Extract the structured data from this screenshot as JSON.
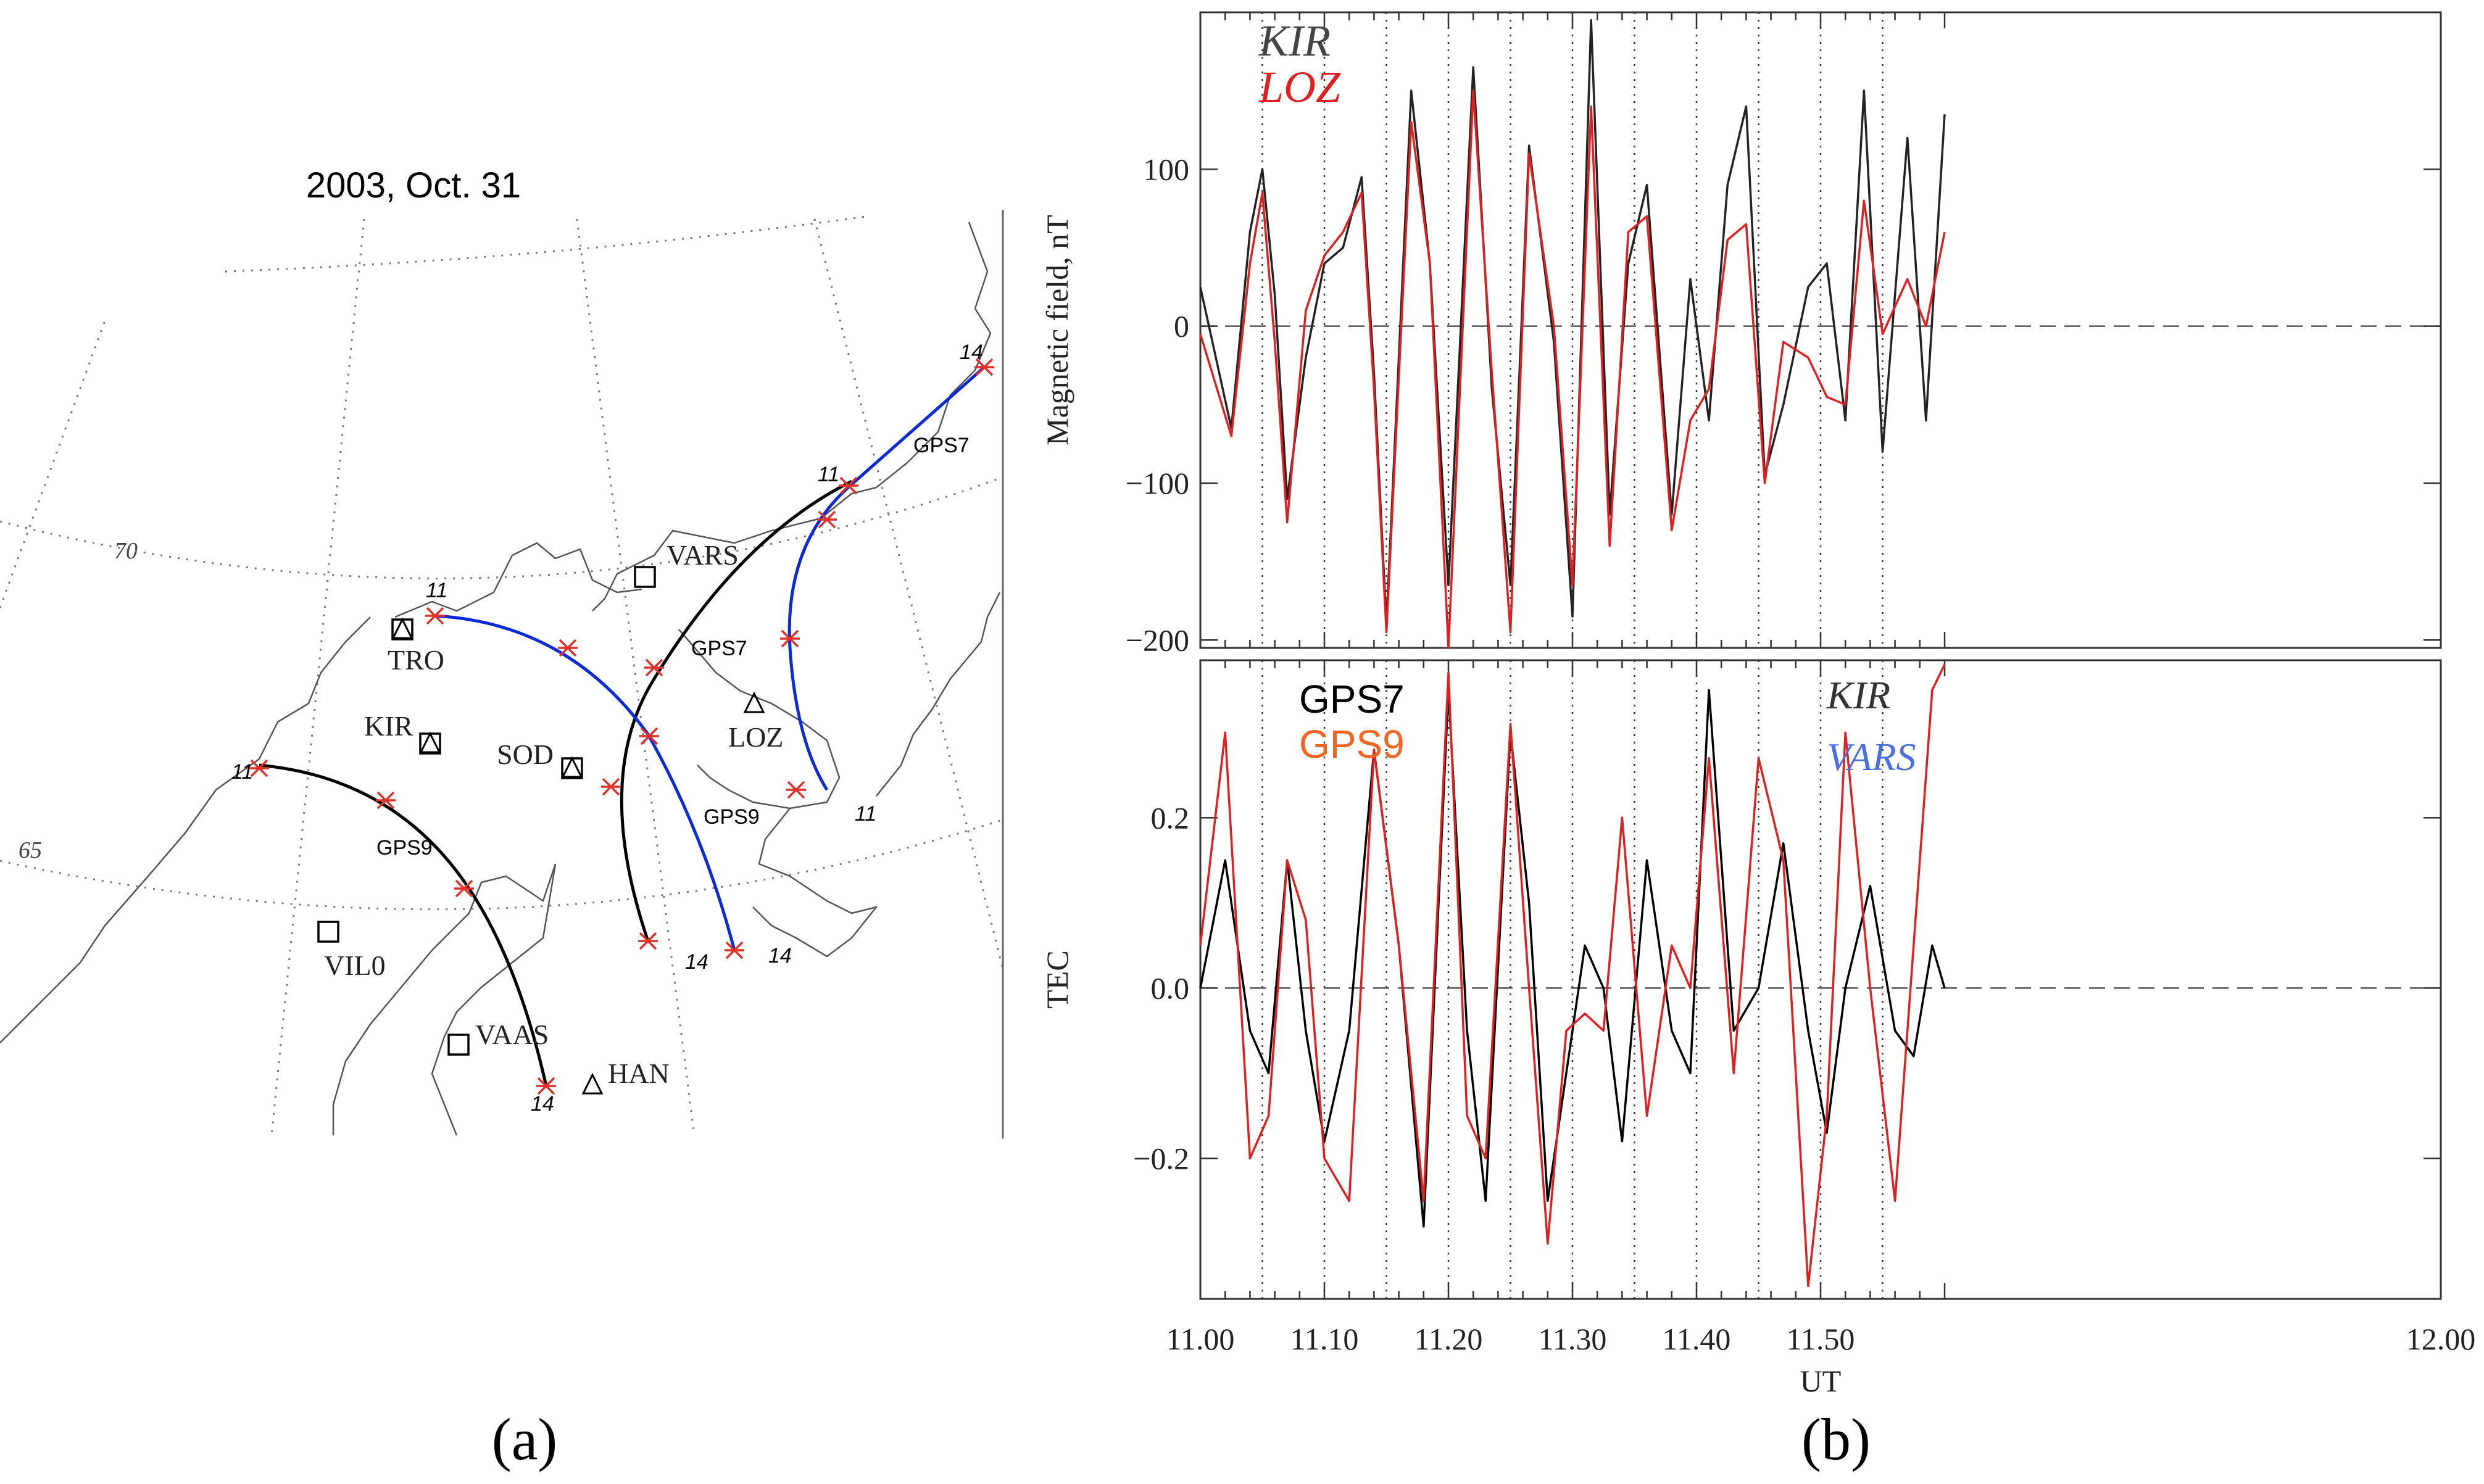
{
  "map": {
    "title": "2003, Oct. 31",
    "panel_label": "(a)",
    "lat_labels": [
      "70",
      "65"
    ],
    "stations": [
      {
        "code": "VARS",
        "marker": "square"
      },
      {
        "code": "TRO",
        "marker": "square-triangle"
      },
      {
        "code": "KIR",
        "marker": "square-triangle"
      },
      {
        "code": "SOD",
        "marker": "square-triangle"
      },
      {
        "code": "LOZ",
        "marker": "triangle"
      },
      {
        "code": "VIL0",
        "marker": "square"
      },
      {
        "code": "VAAS",
        "marker": "square"
      },
      {
        "code": "HAN",
        "marker": "triangle"
      }
    ],
    "tracks": [
      {
        "label": "GPS9",
        "color": "#000000",
        "start_label": "11",
        "end_label": "14"
      },
      {
        "label": "GPS7",
        "color": "#000000",
        "start_label": "11",
        "end_label": "14"
      },
      {
        "label": "GPS9",
        "color": "#0a2bd6",
        "start_label": "11",
        "end_label": "14"
      },
      {
        "label": "GPS7",
        "color": "#0a2bd6",
        "start_label": "11",
        "end_label": "14"
      }
    ],
    "colors": {
      "coast": "#666666",
      "grid": "#777777",
      "marker": "#e0302a"
    }
  },
  "chart_data": [
    {
      "type": "line",
      "panel": "(b) top",
      "ylabel": "Magnetic field, nT",
      "xlim": [
        11.0,
        12.0
      ],
      "ylim": [
        -205,
        200
      ],
      "yticks": [
        -200,
        -100,
        0,
        100
      ],
      "ytick_labels": [
        "−200",
        "−100",
        "0",
        "100"
      ],
      "zero_line": "dashed",
      "vgrid": "dotted every 0.05",
      "legend": [
        {
          "name": "KIR",
          "color": "#444444"
        },
        {
          "name": "LOZ",
          "color": "#e02020"
        }
      ],
      "x": [
        11.0,
        11.025,
        11.04,
        11.05,
        11.06,
        11.07,
        11.085,
        11.1,
        11.115,
        11.13,
        11.14,
        11.15,
        11.17,
        11.185,
        11.2,
        11.22,
        11.235,
        11.25,
        11.265,
        11.285,
        11.3,
        11.315,
        11.33,
        11.345,
        11.36,
        11.38,
        11.395,
        11.41,
        11.425,
        11.44,
        11.455,
        11.47,
        11.49,
        11.505,
        11.52,
        11.535,
        11.55,
        11.57,
        11.585,
        11.6
      ],
      "series": [
        {
          "name": "KIR",
          "color": "#222222",
          "values": [
            25,
            -65,
            60,
            100,
            20,
            -110,
            -20,
            40,
            50,
            95,
            -30,
            -190,
            150,
            40,
            -165,
            165,
            -40,
            -165,
            115,
            -10,
            -185,
            195,
            -120,
            40,
            90,
            -120,
            30,
            -60,
            90,
            140,
            -95,
            -50,
            25,
            40,
            -60,
            150,
            -80,
            120,
            -60,
            135
          ]
        },
        {
          "name": "LOZ",
          "color": "#e02020",
          "values": [
            -5,
            -70,
            40,
            85,
            -10,
            -125,
            10,
            45,
            60,
            85,
            -40,
            -195,
            130,
            40,
            -205,
            150,
            -30,
            -195,
            110,
            0,
            -165,
            140,
            -140,
            60,
            70,
            -130,
            -60,
            -40,
            55,
            65,
            -100,
            -10,
            -20,
            -45,
            -50,
            80,
            -5,
            30,
            0,
            60
          ]
        }
      ]
    },
    {
      "type": "line",
      "panel": "(b) bottom",
      "xlabel": "UT",
      "ylabel": "TEC",
      "xlim": [
        11.0,
        12.0
      ],
      "ylim": [
        -0.365,
        0.385
      ],
      "yticks": [
        -0.2,
        0.0,
        0.2
      ],
      "ytick_labels": [
        "−0.2",
        "0.0",
        "0.2"
      ],
      "xticks": [
        11.0,
        11.1,
        11.2,
        11.3,
        11.4,
        11.5,
        12.0
      ],
      "xtick_labels": [
        "11.00",
        "11.10",
        "11.20",
        "11.30",
        "11.40",
        "11.50",
        "12.00"
      ],
      "zero_line": "dashed",
      "vgrid": "dotted every 0.05",
      "legend": [
        {
          "name": "GPS7",
          "color": "#000000"
        },
        {
          "name": "GPS9",
          "color": "#f26522"
        },
        {
          "name": "KIR",
          "color": "#333333"
        },
        {
          "name": "VARS",
          "color": "#4a6ee0"
        }
      ],
      "x": [
        11.0,
        11.02,
        11.04,
        11.055,
        11.07,
        11.085,
        11.1,
        11.12,
        11.14,
        11.16,
        11.18,
        11.2,
        11.215,
        11.23,
        11.25,
        11.265,
        11.28,
        11.295,
        11.31,
        11.325,
        11.34,
        11.36,
        11.38,
        11.395,
        11.41,
        11.43,
        11.45,
        11.47,
        11.49,
        11.505,
        11.52,
        11.54,
        11.56,
        11.575,
        11.59,
        11.6
      ],
      "series": [
        {
          "name": "GPS7",
          "color": "#000000",
          "values": [
            0.0,
            0.15,
            -0.05,
            -0.1,
            0.15,
            -0.05,
            -0.18,
            -0.05,
            0.28,
            0.05,
            -0.28,
            0.35,
            -0.05,
            -0.25,
            0.3,
            0.1,
            -0.25,
            -0.1,
            0.05,
            0.0,
            -0.18,
            0.15,
            -0.05,
            -0.1,
            0.35,
            -0.05,
            0.0,
            0.17,
            -0.05,
            -0.17,
            0.0,
            0.12,
            -0.05,
            -0.08,
            0.05,
            0.0
          ]
        },
        {
          "name": "GPS9",
          "color": "#e02020",
          "values": [
            0.05,
            0.3,
            -0.2,
            -0.15,
            0.15,
            0.08,
            -0.2,
            -0.25,
            0.28,
            0.05,
            -0.25,
            0.37,
            -0.15,
            -0.2,
            0.31,
            0.0,
            -0.3,
            -0.05,
            -0.03,
            -0.05,
            0.2,
            -0.15,
            0.05,
            0.0,
            0.27,
            -0.1,
            0.27,
            0.15,
            -0.35,
            -0.15,
            0.3,
            0.0,
            -0.25,
            0.05,
            0.35,
            0.38
          ]
        }
      ]
    }
  ],
  "bplot": {
    "panel_label": "(b)",
    "xlabel": "UT"
  }
}
